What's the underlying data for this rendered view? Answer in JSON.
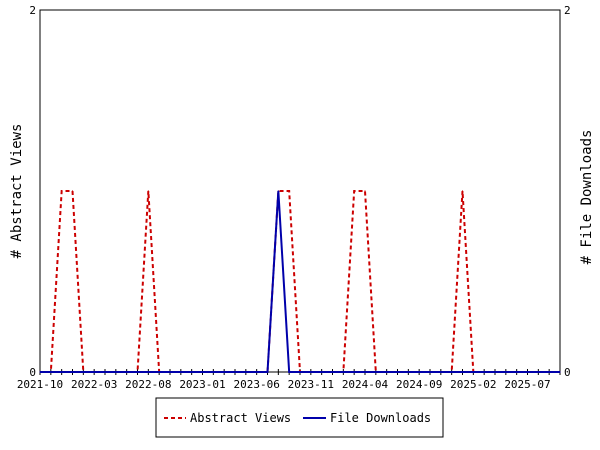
{
  "chart_data": {
    "type": "line",
    "x": [
      "2021-10",
      "2021-11",
      "2021-12",
      "2022-01",
      "2022-02",
      "2022-03",
      "2022-04",
      "2022-05",
      "2022-06",
      "2022-07",
      "2022-08",
      "2022-09",
      "2022-10",
      "2022-11",
      "2022-12",
      "2023-01",
      "2023-02",
      "2023-03",
      "2023-04",
      "2023-05",
      "2023-06",
      "2023-07",
      "2023-08",
      "2023-09",
      "2023-10",
      "2023-11",
      "2023-12",
      "2024-01",
      "2024-02",
      "2024-03",
      "2024-04",
      "2024-05",
      "2024-06",
      "2024-07",
      "2024-08",
      "2024-09",
      "2024-10",
      "2024-11",
      "2024-12",
      "2025-01",
      "2025-02",
      "2025-03",
      "2025-04",
      "2025-05",
      "2025-06",
      "2025-07",
      "2025-08",
      "2025-09",
      "2025-10"
    ],
    "series": [
      {
        "name": "Abstract Views",
        "color": "#cc0000",
        "dash": true,
        "axis": "left",
        "values": [
          0,
          0,
          1,
          1,
          0,
          0,
          0,
          0,
          0,
          0,
          1,
          0,
          0,
          0,
          0,
          0,
          0,
          0,
          0,
          0,
          0,
          0,
          1,
          1,
          0,
          0,
          0,
          0,
          0,
          1,
          1,
          0,
          0,
          0,
          0,
          0,
          0,
          0,
          0,
          1,
          0,
          0,
          0,
          0,
          0,
          0,
          0,
          0,
          0
        ]
      },
      {
        "name": "File Downloads",
        "color": "#0000aa",
        "dash": false,
        "axis": "right",
        "values": [
          0,
          0,
          0,
          0,
          0,
          0,
          0,
          0,
          0,
          0,
          0,
          0,
          0,
          0,
          0,
          0,
          0,
          0,
          0,
          0,
          0,
          0,
          1,
          0,
          0,
          0,
          0,
          0,
          0,
          0,
          0,
          0,
          0,
          0,
          0,
          0,
          0,
          0,
          0,
          0,
          0,
          0,
          0,
          0,
          0,
          0,
          0,
          0,
          0
        ]
      }
    ],
    "x_tick_labels": [
      "2021-10",
      "2022-03",
      "2022-08",
      "2023-01",
      "2023-06",
      "2023-11",
      "2024-04",
      "2024-09",
      "2025-02",
      "2025-07"
    ],
    "ylabel_left": "# Abstract Views",
    "ylabel_right": "# File Downloads",
    "ylim": [
      0,
      2
    ],
    "y_tick_labels_left": [
      "0",
      "2"
    ],
    "y_tick_labels_right": [
      "0",
      "2"
    ],
    "grid": false,
    "legend_position": "bottom"
  }
}
